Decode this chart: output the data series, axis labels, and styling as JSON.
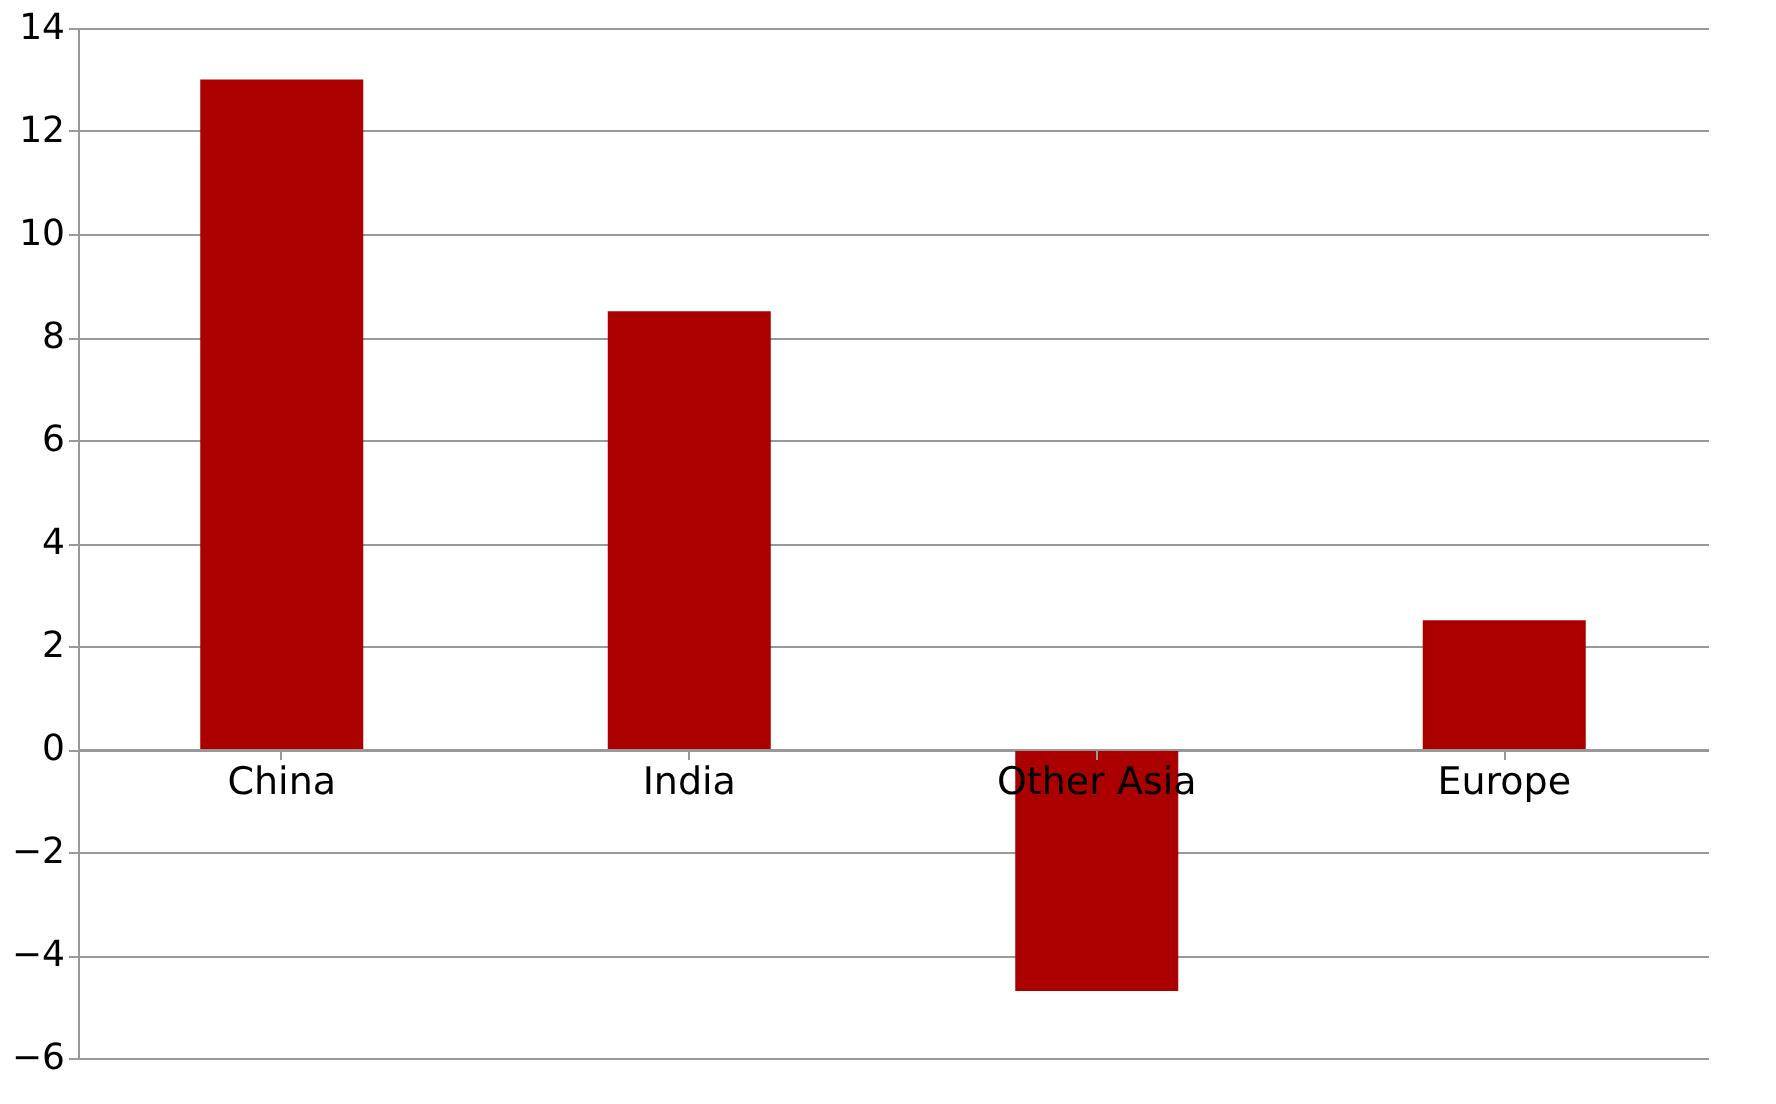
{
  "chart_data": {
    "type": "bar",
    "categories": [
      "China",
      "India",
      "Other Asia",
      "Europe"
    ],
    "values": [
      13,
      8.5,
      -4.7,
      2.5
    ],
    "color": "#aa0000",
    "ylim": [
      -6,
      14
    ],
    "yticks": [
      -6,
      -4,
      -2,
      0,
      2,
      4,
      6,
      8,
      10,
      12,
      14
    ],
    "grid": "y"
  }
}
